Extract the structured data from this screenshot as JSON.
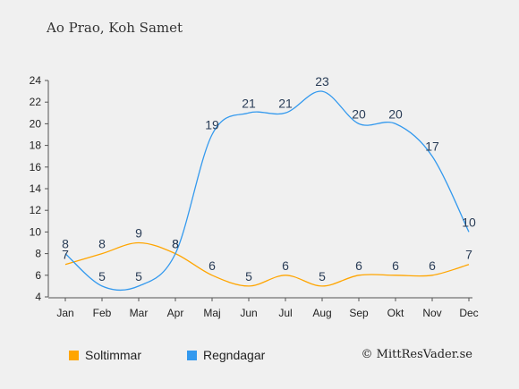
{
  "title": "Ao Prao, Koh Samet",
  "copyright": "© MittResVader.se",
  "chart_data": {
    "type": "line",
    "categories": [
      "Jan",
      "Feb",
      "Mar",
      "Apr",
      "Maj",
      "Jun",
      "Jul",
      "Aug",
      "Sep",
      "Okt",
      "Nov",
      "Dec"
    ],
    "ylim": [
      4,
      24
    ],
    "yticks": [
      4,
      6,
      8,
      10,
      12,
      14,
      16,
      18,
      20,
      22,
      24
    ],
    "grid": false,
    "legend_position": "bottom-left",
    "series": [
      {
        "name": "Soltimmar",
        "color": "#ffa500",
        "values": [
          7,
          8,
          9,
          8,
          6,
          5,
          6,
          5,
          6,
          6,
          6,
          7
        ]
      },
      {
        "name": "Regndagar",
        "color": "#3399ee",
        "values": [
          8,
          5,
          5,
          8,
          19,
          21,
          21,
          23,
          20,
          20,
          17,
          10
        ]
      }
    ]
  }
}
